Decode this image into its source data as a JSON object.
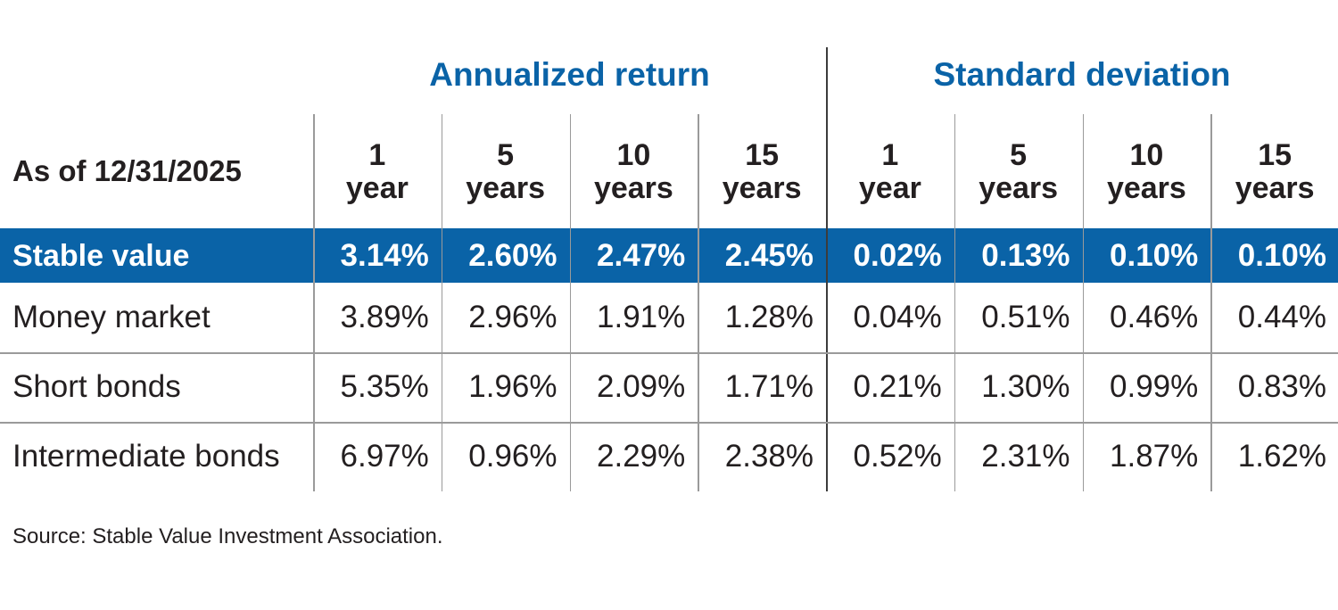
{
  "chart_data": {
    "type": "table",
    "groups": [
      {
        "title": "Annualized return"
      },
      {
        "title": "Standard deviation"
      }
    ],
    "corner_label": "As of 12/31/2025",
    "columns": [
      {
        "top": "1",
        "bottom": "year"
      },
      {
        "top": "5",
        "bottom": "years"
      },
      {
        "top": "10",
        "bottom": "years"
      },
      {
        "top": "15",
        "bottom": "years"
      },
      {
        "top": "1",
        "bottom": "year"
      },
      {
        "top": "5",
        "bottom": "years"
      },
      {
        "top": "10",
        "bottom": "years"
      },
      {
        "top": "15",
        "bottom": "years"
      }
    ],
    "rows": [
      {
        "label": "Stable value",
        "highlight": true,
        "values": [
          "3.14%",
          "2.60%",
          "2.47%",
          "2.45%",
          "0.02%",
          "0.13%",
          "0.10%",
          "0.10%"
        ]
      },
      {
        "label": "Money market",
        "highlight": false,
        "values": [
          "3.89%",
          "2.96%",
          "1.91%",
          "1.28%",
          "0.04%",
          "0.51%",
          "0.46%",
          "0.44%"
        ]
      },
      {
        "label": "Short bonds",
        "highlight": false,
        "values": [
          "5.35%",
          "1.96%",
          "2.09%",
          "1.71%",
          "0.21%",
          "1.30%",
          "0.99%",
          "0.83%"
        ]
      },
      {
        "label": "Intermediate bonds",
        "highlight": false,
        "values": [
          "6.97%",
          "0.96%",
          "2.29%",
          "2.38%",
          "0.52%",
          "2.31%",
          "1.87%",
          "1.62%"
        ]
      }
    ],
    "source": "Source: Stable Value Investment Association."
  },
  "colors": {
    "accent": "#0a63a7",
    "text": "#231f20",
    "highlight_text": "#ffffff",
    "rule": "#9a9a9a"
  }
}
